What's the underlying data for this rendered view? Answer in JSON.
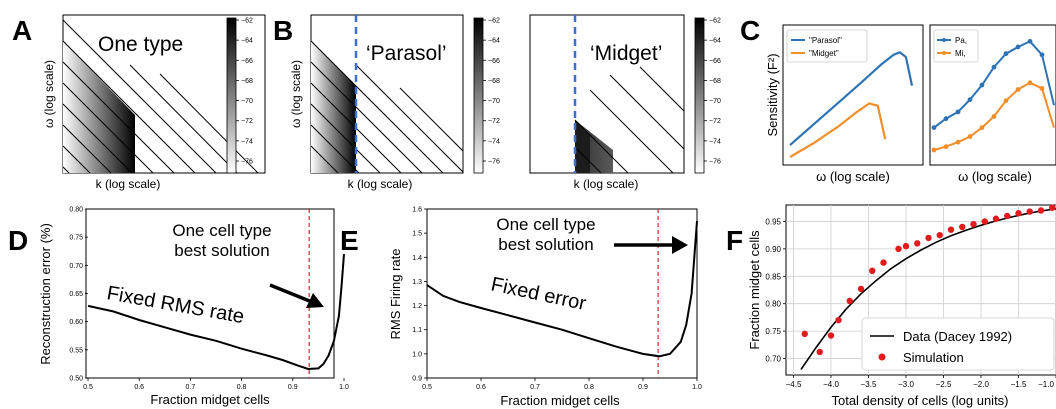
{
  "panel_letters": [
    "A",
    "B",
    "C",
    "D",
    "E",
    "F"
  ],
  "heatmap_panels": [
    {
      "annotation": "One type",
      "xlabel": "k (log scale)",
      "ylabel": "ω (log scale)",
      "dashed_line": false
    },
    {
      "annotation": "‘Parasol’",
      "xlabel": "k (log scale)",
      "ylabel": "ω (log scale)",
      "dashed_line": true
    },
    {
      "annotation": "‘Midget’",
      "xlabel": "k (log scale)",
      "ylabel": "",
      "dashed_line": true
    }
  ],
  "colorbar_ticks": [
    "−62",
    "−64",
    "−66",
    "−68",
    "−70",
    "−72",
    "−74",
    "−76"
  ],
  "colors": {
    "blue": "#2d73b5",
    "orange": "#f28e2b",
    "red_dashed": "#d62728",
    "blue_dashed": "#3a6fd6",
    "red_points": "#e41a1c"
  },
  "chart_data": [
    {
      "type": "line",
      "panel": "C-left",
      "xlabel": "ω (log scale)",
      "ylabel": "Sensitivity (F²)",
      "legend": [
        "\"Parasol\"",
        "\"Midget\""
      ],
      "legend_position": "top-left",
      "series": [
        {
          "name": "\"Parasol\"",
          "x": [
            0,
            0.2,
            0.4,
            0.6,
            0.75,
            0.85,
            0.9,
            0.95,
            1.0
          ],
          "values": [
            0.1,
            0.28,
            0.46,
            0.64,
            0.78,
            0.86,
            0.88,
            0.84,
            0.6
          ]
        },
        {
          "name": "\"Midget\"",
          "x": [
            0,
            0.2,
            0.4,
            0.55,
            0.65,
            0.72,
            0.78
          ],
          "values": [
            0.0,
            0.12,
            0.26,
            0.38,
            0.45,
            0.43,
            0.15
          ]
        }
      ]
    },
    {
      "type": "line",
      "panel": "C-right",
      "xlabel": "ω (log scale)",
      "legend": [
        "Pa,",
        "Mi,"
      ],
      "legend_position": "top-left",
      "series": [
        {
          "name": "Pa,",
          "x": [
            0,
            1,
            2,
            3,
            4,
            5,
            6,
            7,
            8,
            9,
            10
          ],
          "values": [
            0.2,
            0.28,
            0.34,
            0.45,
            0.58,
            0.74,
            0.86,
            0.92,
            0.97,
            0.85,
            0.4
          ]
        },
        {
          "name": "Mi,",
          "x": [
            0,
            1,
            2,
            3,
            4,
            5,
            6,
            7,
            8,
            9,
            10
          ],
          "values": [
            0.0,
            0.03,
            0.07,
            0.12,
            0.2,
            0.3,
            0.44,
            0.54,
            0.6,
            0.55,
            0.2
          ]
        }
      ]
    },
    {
      "type": "line",
      "panel": "D",
      "xlabel": "Fraction midget cells",
      "ylabel": "Reconstruction error (%)",
      "xlim": [
        0.5,
        1.0
      ],
      "ylim": [
        0.5,
        0.8
      ],
      "xticks": [
        "0.5",
        "0.6",
        "0.7",
        "0.8",
        "0.9",
        "1.0"
      ],
      "yticks": [
        "0.50",
        "0.55",
        "0.60",
        "0.65",
        "0.70",
        "0.75",
        "0.80"
      ],
      "vline": 0.932,
      "annotations": [
        "One cell type",
        "best solution",
        "Fixed RMS rate"
      ],
      "x": [
        0.5,
        0.55,
        0.6,
        0.65,
        0.7,
        0.75,
        0.8,
        0.85,
        0.88,
        0.91,
        0.93,
        0.95,
        0.96,
        0.97,
        0.98,
        0.99,
        0.995,
        1.0
      ],
      "values": [
        0.628,
        0.618,
        0.603,
        0.59,
        0.577,
        0.566,
        0.552,
        0.54,
        0.532,
        0.522,
        0.516,
        0.517,
        0.525,
        0.54,
        0.565,
        0.61,
        0.66,
        0.72
      ]
    },
    {
      "type": "line",
      "panel": "E",
      "xlabel": "Fraction midget cells",
      "ylabel": "RMS Firing rate",
      "xlim": [
        0.5,
        1.0
      ],
      "ylim": [
        0.9,
        1.6
      ],
      "xticks": [
        "0.5",
        "0.6",
        "0.7",
        "0.8",
        "0.9",
        "1.0"
      ],
      "yticks": [
        "0.9",
        "1.0",
        "1.1",
        "1.2",
        "1.3",
        "1.4",
        "1.5",
        "1.6"
      ],
      "vline": 0.928,
      "annotations": [
        "One cell type",
        "best solution",
        "Fixed error"
      ],
      "x": [
        0.5,
        0.53,
        0.56,
        0.6,
        0.65,
        0.7,
        0.75,
        0.8,
        0.85,
        0.9,
        0.93,
        0.95,
        0.97,
        0.98,
        0.99,
        0.995,
        1.0
      ],
      "values": [
        1.285,
        1.24,
        1.215,
        1.19,
        1.16,
        1.13,
        1.1,
        1.065,
        1.03,
        1.0,
        0.99,
        1.0,
        1.05,
        1.12,
        1.25,
        1.4,
        1.55
      ]
    },
    {
      "type": "scatter",
      "panel": "F",
      "xlabel": "Total density of cells (log units)",
      "ylabel": "Fraction midget cells",
      "xlim": [
        -4.6,
        -1.0
      ],
      "ylim": [
        0.67,
        0.98
      ],
      "xticks": [
        "−4.5",
        "−4.0",
        "−3.5",
        "−3.0",
        "−2.5",
        "−2.0",
        "−1.5",
        "−1.0"
      ],
      "yticks": [
        "0.70",
        "0.75",
        "0.80",
        "0.85",
        "0.90",
        "0.95"
      ],
      "legend": [
        "Data (Dacey 1992)",
        "Simulation"
      ],
      "legend_position": "bottom-right",
      "series": [
        {
          "name": "Data (Dacey 1992)",
          "kind": "line",
          "x": [
            -4.4,
            -4.2,
            -4.0,
            -3.8,
            -3.6,
            -3.4,
            -3.2,
            -3.0,
            -2.8,
            -2.6,
            -2.4,
            -2.2,
            -2.0,
            -1.8,
            -1.6,
            -1.4,
            -1.2,
            -1.0
          ],
          "values": [
            0.68,
            0.72,
            0.757,
            0.79,
            0.818,
            0.842,
            0.864,
            0.882,
            0.898,
            0.912,
            0.924,
            0.934,
            0.943,
            0.951,
            0.958,
            0.964,
            0.969,
            0.973
          ]
        },
        {
          "name": "Simulation",
          "kind": "scatter",
          "x": [
            -4.35,
            -4.15,
            -4.0,
            -3.9,
            -3.75,
            -3.6,
            -3.45,
            -3.3,
            -3.1,
            -3.0,
            -2.85,
            -2.7,
            -2.55,
            -2.4,
            -2.25,
            -2.1,
            -1.95,
            -1.8,
            -1.65,
            -1.5,
            -1.35,
            -1.2,
            -1.05
          ],
          "values": [
            0.745,
            0.712,
            0.742,
            0.77,
            0.805,
            0.827,
            0.86,
            0.875,
            0.9,
            0.905,
            0.91,
            0.92,
            0.925,
            0.935,
            0.94,
            0.945,
            0.95,
            0.955,
            0.96,
            0.965,
            0.968,
            0.97,
            0.975
          ]
        }
      ]
    }
  ]
}
